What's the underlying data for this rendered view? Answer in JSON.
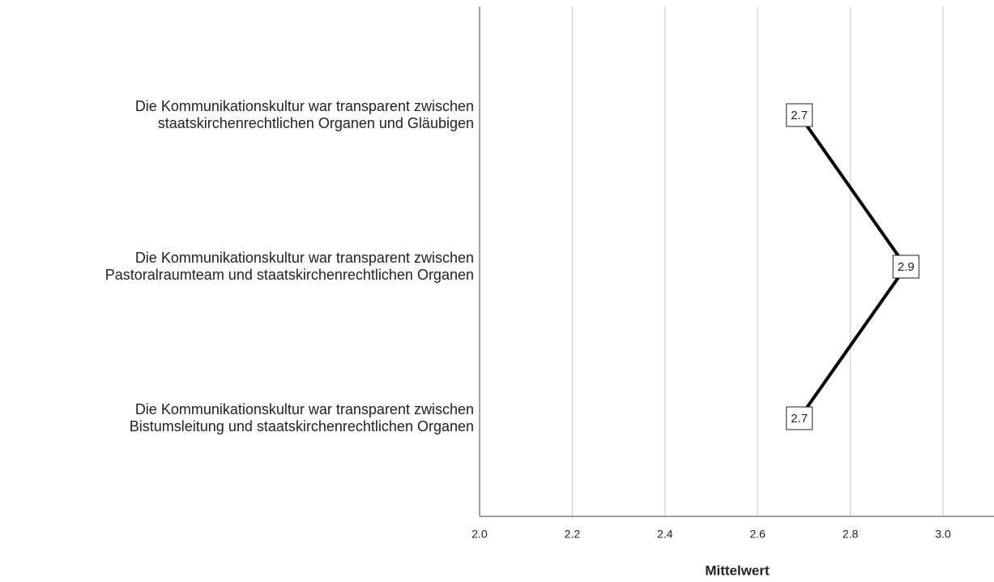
{
  "chart_data": {
    "type": "line",
    "orientation": "horizontal",
    "categories": [
      "Die Kommunikationskultur war transparent zwischen\nstaatskirchenrechtlichen Organen und Gläubigen",
      "Die Kommunikationskultur war transparent zwischen\nPastoralraumteam und staatskirchenrechtlichen Organen",
      "Die Kommunikationskultur war transparent zwischen\nBistumsleitung und staatskirchenrechtlichen Organen"
    ],
    "values": [
      2.69,
      2.92,
      2.69
    ],
    "value_labels": [
      "2.7",
      "2.9",
      "2.7"
    ],
    "color": "#000000",
    "xlabel": "Mittelwert",
    "xlim": [
      2.0,
      3.11
    ],
    "xticks": [
      {
        "value": 2,
        "label": "2.0"
      },
      2.2,
      2.4,
      2.6,
      2.8,
      {
        "value": 3,
        "label": "3.0"
      }
    ],
    "grid": true
  }
}
